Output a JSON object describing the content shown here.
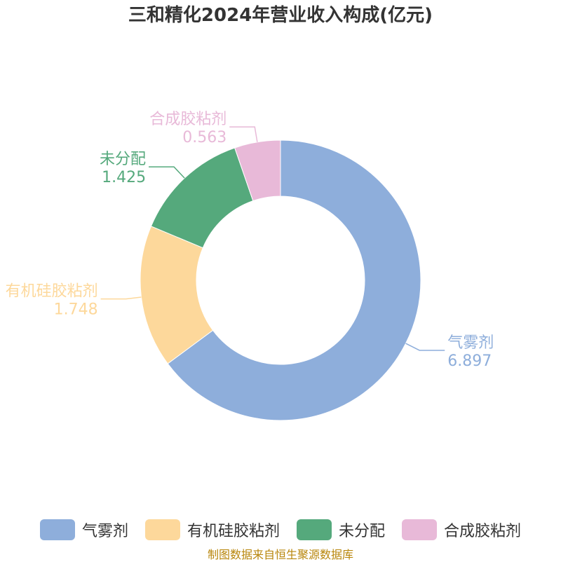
{
  "title": "三和精化2024年营业收入构成(亿元)",
  "source": "制图数据来自恒生聚源数据库",
  "chart_data": {
    "type": "pie",
    "style": "donut",
    "title": "三和精化2024年营业收入构成(亿元)",
    "unit": "亿元",
    "legend_position": "bottom",
    "slices": [
      {
        "name": "气雾剂",
        "value": 6.897,
        "value_label": "6.897",
        "color": "#8eaedb"
      },
      {
        "name": "有机硅胶粘剂",
        "value": 1.748,
        "value_label": "1.748",
        "color": "#fdd89b"
      },
      {
        "name": "未分配",
        "value": 1.425,
        "value_label": "1.425",
        "color": "#55a97c"
      },
      {
        "name": "合成胶粘剂",
        "value": 0.563,
        "value_label": "0.563",
        "color": "#e8b9d8"
      }
    ]
  }
}
